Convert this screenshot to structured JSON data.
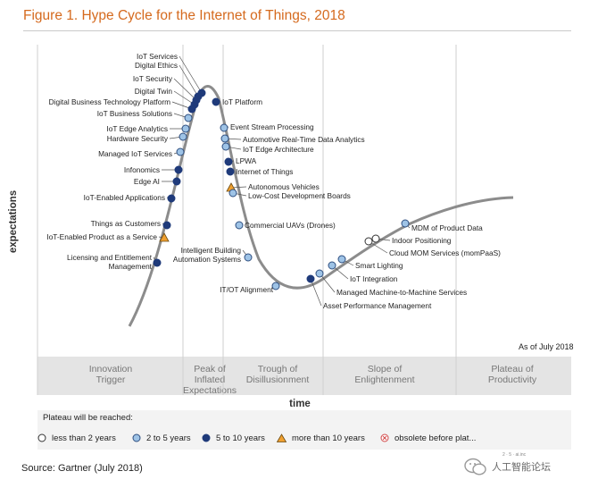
{
  "title": "Figure 1. Hype Cycle for the Internet of Things, 2018",
  "axis": {
    "y": "expectations",
    "x": "time"
  },
  "as_of": "As of July 2018",
  "phases": [
    "Innovation\nTrigger",
    "Peak of\nInflated\nExpectations",
    "Trough of\nDisillusionment",
    "Slope of\nEnlightenment",
    "Plateau of\nProductivity"
  ],
  "legend": {
    "title": "Plateau will be reached:",
    "items": [
      {
        "label": "less than 2 years",
        "marker": "white-circle"
      },
      {
        "label": "2 to 5 years",
        "marker": "light-blue-circle"
      },
      {
        "label": "5 to 10 years",
        "marker": "dark-blue-circle"
      },
      {
        "label": "more than 10 years",
        "marker": "orange-triangle"
      },
      {
        "label": "obsolete before plat...",
        "marker": "red-x-circle"
      }
    ]
  },
  "colors": {
    "title": "#d56a1e",
    "curve": "#8c8c8c",
    "white": "#ffffff",
    "light_blue": "#9ec3e6",
    "dark_blue": "#1f3a7a",
    "orange": "#f0a030",
    "red": "#d24a4a"
  },
  "technologies": [
    {
      "label": "IoT Services",
      "marker": "dark-blue-circle"
    },
    {
      "label": "Digital Ethics",
      "marker": "dark-blue-circle"
    },
    {
      "label": "IoT Security",
      "marker": "dark-blue-circle"
    },
    {
      "label": "Digital Twin",
      "marker": "dark-blue-circle"
    },
    {
      "label": "Digital Business Technology Platform",
      "marker": "dark-blue-circle"
    },
    {
      "label": "IoT Business Solutions",
      "marker": "light-blue-circle"
    },
    {
      "label": "IoT Edge Analytics",
      "marker": "light-blue-circle"
    },
    {
      "label": "Hardware Security",
      "marker": "light-blue-circle"
    },
    {
      "label": "Managed IoT Services",
      "marker": "light-blue-circle"
    },
    {
      "label": "Infonomics",
      "marker": "dark-blue-circle"
    },
    {
      "label": "Edge AI",
      "marker": "dark-blue-circle"
    },
    {
      "label": "IoT-Enabled Applications",
      "marker": "dark-blue-circle"
    },
    {
      "label": "Things as Customers",
      "marker": "dark-blue-circle"
    },
    {
      "label": "IoT-Enabled Product as a Service",
      "marker": "orange-triangle"
    },
    {
      "label": "Licensing and Entitlement\nManagement",
      "marker": "dark-blue-circle"
    },
    {
      "label": "IoT Platform",
      "marker": "dark-blue-circle"
    },
    {
      "label": "Event Stream Processing",
      "marker": "light-blue-circle"
    },
    {
      "label": "Automotive Real-Time Data Analytics",
      "marker": "light-blue-circle"
    },
    {
      "label": "IoT Edge Architecture",
      "marker": "light-blue-circle"
    },
    {
      "label": "LPWA",
      "marker": "dark-blue-circle"
    },
    {
      "label": "Internet of Things",
      "marker": "dark-blue-circle"
    },
    {
      "label": "Autonomous Vehicles",
      "marker": "orange-triangle"
    },
    {
      "label": "Low-Cost Development Boards",
      "marker": "light-blue-circle"
    },
    {
      "label": "Commercial UAVs (Drones)",
      "marker": "light-blue-circle"
    },
    {
      "label": "Intelligent Building\nAutomation Systems",
      "marker": "light-blue-circle"
    },
    {
      "label": "IT/OT Alignment",
      "marker": "light-blue-circle"
    },
    {
      "label": "Asset Performance Management",
      "marker": "dark-blue-circle"
    },
    {
      "label": "Managed Machine-to-Machine Services",
      "marker": "light-blue-circle"
    },
    {
      "label": "IoT Integration",
      "marker": "light-blue-circle"
    },
    {
      "label": "Smart Lighting",
      "marker": "light-blue-circle"
    },
    {
      "label": "Cloud MOM Services (momPaaS)",
      "marker": "white-circle"
    },
    {
      "label": "Indoor Positioning",
      "marker": "white-circle"
    },
    {
      "label": "MDM of Product Data",
      "marker": "light-blue-circle"
    }
  ],
  "source": "Source: Gartner (July 2018)",
  "watermark": {
    "text": "人工智能论坛",
    "small": "2 · 5 · ai.inc"
  }
}
